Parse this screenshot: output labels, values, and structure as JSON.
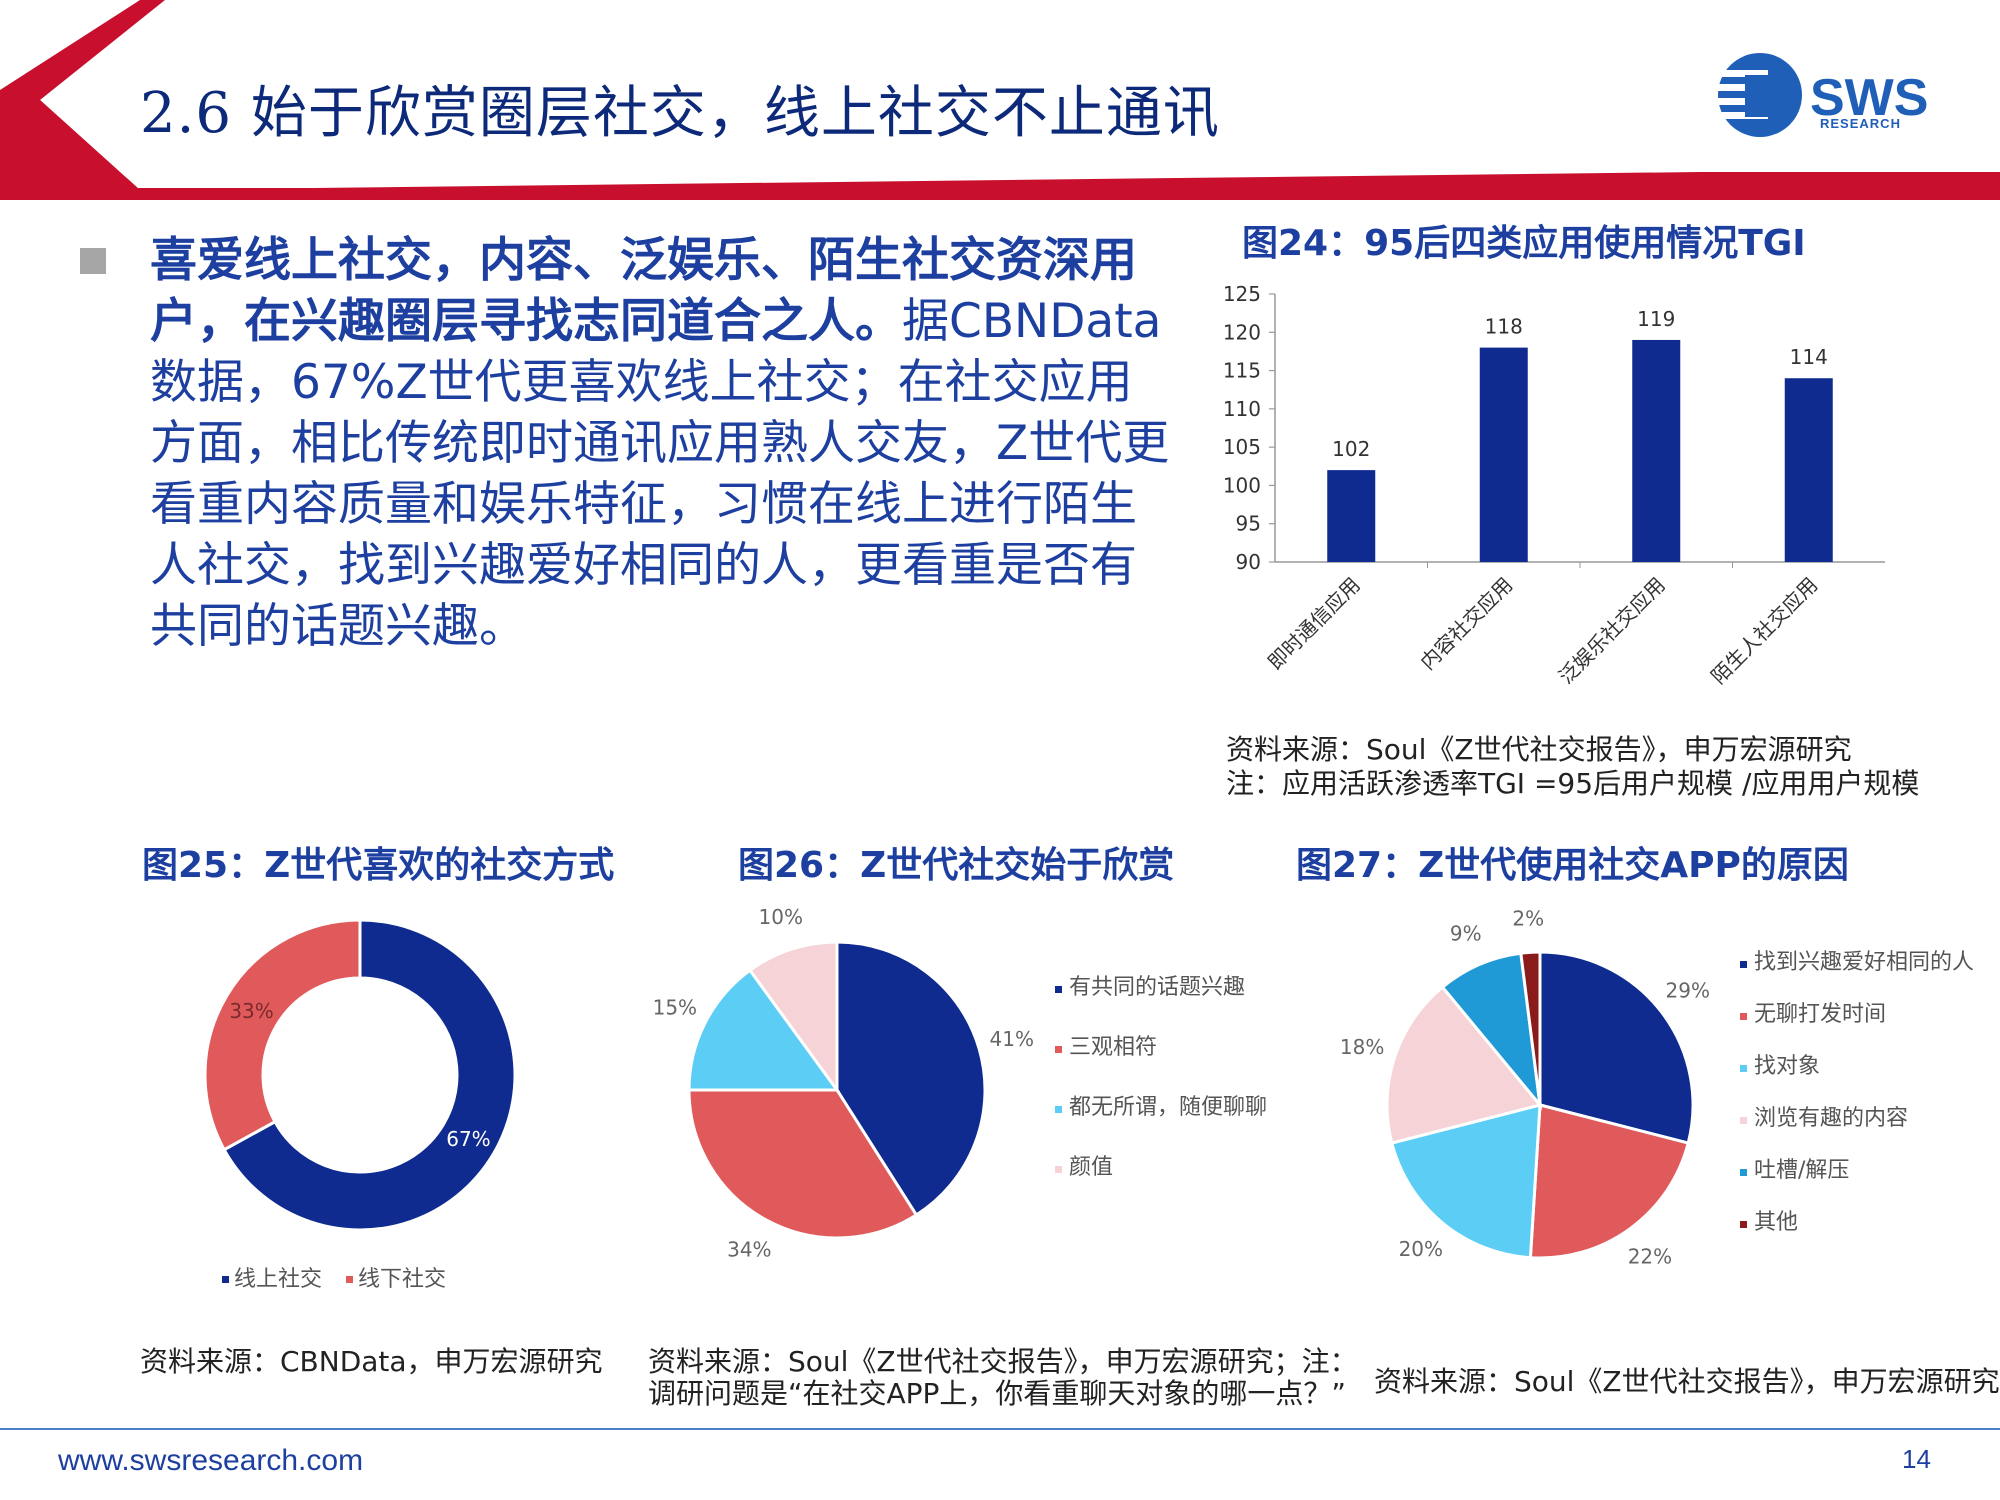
{
  "header": {
    "title": "2.6 始于欣赏圈层社交，线上社交不止通讯",
    "logo_main": "SWS",
    "logo_sub": "RESEARCH",
    "accent_color": "#c8102e",
    "brand_color": "#1d3fa0"
  },
  "body": {
    "bold_text": "喜爱线上社交，内容、泛娱乐、陌生社交资深用户，在兴趣圈层寻找志同道合之人。",
    "normal_text": "据CBNData数据，67%Z世代更喜欢线上社交；在社交应用方面，相比传统即时通讯应用熟人交友，Z世代更看重内容质量和娱乐特征，习惯在线上进行陌生人社交，找到兴趣爱好相同的人，更看重是否有共同的话题兴趣。"
  },
  "fig24": {
    "title": "图24：95后四类应用使用情况TGI",
    "source": "资料来源：Soul《Z世代社交报告》，申万宏源研究",
    "note": "注：应用活跃渗透率TGI =95后用户规模 /应用用户规模"
  },
  "fig25": {
    "title": "图25：Z世代喜欢的社交方式",
    "source": "资料来源：CBNData，申万宏源研究"
  },
  "fig26": {
    "title": "图26：Z世代社交始于欣赏",
    "source_line1": "资料来源：Soul《Z世代社交报告》，申万宏源研究；注：",
    "source_line2": "调研问题是“在社交APP上，你看重聊天对象的哪一点？”"
  },
  "fig27": {
    "title": "图27：Z世代使用社交APP的原因",
    "source": "资料来源：Soul《Z世代社交报告》，申万宏源研究"
  },
  "footer": {
    "url": "www.swsresearch.com",
    "page": "14"
  },
  "chart_data": [
    {
      "id": "fig24",
      "type": "bar",
      "categories": [
        "即时通信应用",
        "内容社交应用",
        "泛娱乐社交应用",
        "陌生人社交应用"
      ],
      "values": [
        102,
        118,
        119,
        114
      ],
      "ylim": [
        90,
        125
      ],
      "yticks": [
        90,
        95,
        100,
        105,
        110,
        115,
        120,
        125
      ],
      "color": "#0f2b8f",
      "grid": false
    },
    {
      "id": "fig25",
      "type": "pie",
      "variant": "donut",
      "labels": [
        "线上社交",
        "线下社交"
      ],
      "values": [
        67,
        33
      ],
      "value_labels": [
        "67%",
        "33%"
      ],
      "colors": [
        "#0f2b8f",
        "#e05a5c"
      ],
      "legend": "bottom"
    },
    {
      "id": "fig26",
      "type": "pie",
      "labels": [
        "有共同的话题兴趣",
        "三观相符",
        "都无所谓，随便聊聊",
        "颜值"
      ],
      "values": [
        41,
        34,
        15,
        10
      ],
      "value_labels": [
        "41%",
        "34%",
        "15%",
        "10%"
      ],
      "colors": [
        "#0f2b8f",
        "#e05a5c",
        "#5ccdf5",
        "#f5d3d6"
      ],
      "legend": "right"
    },
    {
      "id": "fig27",
      "type": "pie",
      "labels": [
        "找到兴趣爱好相同的人",
        "无聊打发时间",
        "找对象",
        "浏览有趣的内容",
        "吐槽/解压",
        "其他"
      ],
      "values": [
        29,
        22,
        20,
        18,
        9,
        2
      ],
      "value_labels": [
        "29%",
        "22%",
        "20%",
        "18%",
        "9%",
        "2%"
      ],
      "colors": [
        "#0f2b8f",
        "#e05a5c",
        "#5ccdf5",
        "#f5d3d6",
        "#1f9ad6",
        "#8b1a1a"
      ],
      "legend": "right"
    }
  ]
}
